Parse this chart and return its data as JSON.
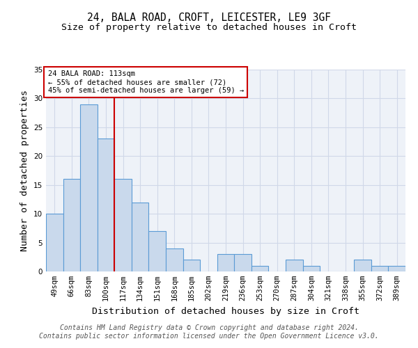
{
  "title": "24, BALA ROAD, CROFT, LEICESTER, LE9 3GF",
  "subtitle": "Size of property relative to detached houses in Croft",
  "xlabel": "Distribution of detached houses by size in Croft",
  "ylabel": "Number of detached properties",
  "footer_line1": "Contains HM Land Registry data © Crown copyright and database right 2024.",
  "footer_line2": "Contains public sector information licensed under the Open Government Licence v3.0.",
  "categories": [
    "49sqm",
    "66sqm",
    "83sqm",
    "100sqm",
    "117sqm",
    "134sqm",
    "151sqm",
    "168sqm",
    "185sqm",
    "202sqm",
    "219sqm",
    "236sqm",
    "253sqm",
    "270sqm",
    "287sqm",
    "304sqm",
    "321sqm",
    "338sqm",
    "355sqm",
    "372sqm",
    "389sqm"
  ],
  "values": [
    10,
    16,
    29,
    23,
    16,
    12,
    7,
    4,
    2,
    0,
    3,
    3,
    1,
    0,
    2,
    1,
    0,
    0,
    2,
    1,
    1
  ],
  "bar_color": "#c9d9ec",
  "bar_edge_color": "#5b9bd5",
  "vline_index": 4,
  "vline_color": "#cc0000",
  "annotation_line1": "24 BALA ROAD: 113sqm",
  "annotation_line2": "← 55% of detached houses are smaller (72)",
  "annotation_line3": "45% of semi-detached houses are larger (59) →",
  "annotation_box_color": "#cc0000",
  "ylim": [
    0,
    35
  ],
  "yticks": [
    0,
    5,
    10,
    15,
    20,
    25,
    30,
    35
  ],
  "grid_color": "#d0d8e8",
  "bg_color": "#eef2f8",
  "title_fontsize": 10.5,
  "subtitle_fontsize": 9.5,
  "axis_label_fontsize": 9.5,
  "tick_fontsize": 7.5,
  "annotation_fontsize": 7.5,
  "footer_fontsize": 7.0
}
